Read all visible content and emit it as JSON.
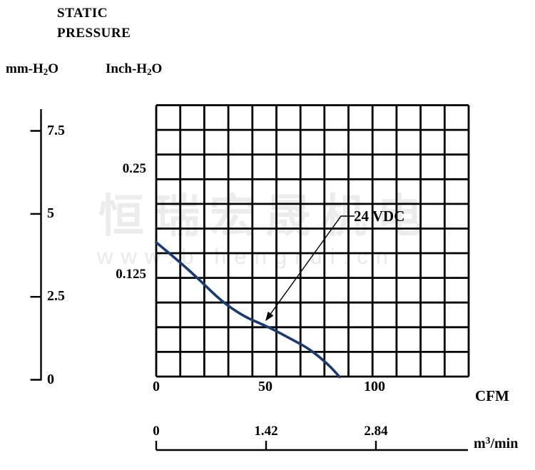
{
  "header": {
    "title_lines": [
      "STATIC",
      "PRESSURE"
    ]
  },
  "axis_units": {
    "mm": {
      "pre": "mm-H",
      "sub": "2",
      "post": "O"
    },
    "inch": {
      "pre": "Inch-H",
      "sub": "2",
      "post": "O"
    },
    "cfm": "CFM",
    "m3min": {
      "pre": "m",
      "sup": "3",
      "post": "/min"
    }
  },
  "watermark": {
    "text": "恒瑞宏晟机电",
    "url": "www.bihengrui.cn"
  },
  "colors": {
    "curve": "#1b3a6e",
    "grid": "#000000",
    "axis": "#000000",
    "watermark_text": "#ececec",
    "watermark_url": "#e9e9e9"
  },
  "chart_data": {
    "type": "line",
    "title": "STATIC PRESSURE",
    "x_axis": {
      "label": "CFM",
      "tick_labels": [
        "0",
        "50",
        "100"
      ],
      "ticks_cfm": [
        0,
        50,
        100
      ],
      "range_cfm": [
        0,
        144
      ]
    },
    "x_axis_secondary": {
      "label": "m3/min",
      "tick_labels": [
        "0",
        "1.42",
        "2.84"
      ],
      "ticks": [
        0,
        1.42,
        2.84
      ]
    },
    "y_axis_primary": {
      "label": "mm-H2O",
      "tick_labels": [
        "7.5",
        "5",
        "2.5",
        "0"
      ],
      "ticks_mm": [
        7.5,
        5,
        2.5,
        0
      ],
      "range_mm": [
        0,
        8.2
      ]
    },
    "y_axis_secondary": {
      "label": "Inch-H2O",
      "tick_labels": [
        "0.25",
        "0.125"
      ],
      "ticks_inch": [
        0.25,
        0.125
      ]
    },
    "grid": {
      "visible": true,
      "cols": 13,
      "rows": 11
    },
    "series": [
      {
        "name": "24 VDC",
        "points_cfm_mm": [
          [
            0,
            4.1
          ],
          [
            10,
            3.55
          ],
          [
            20,
            2.95
          ],
          [
            30,
            2.3
          ],
          [
            40,
            1.85
          ],
          [
            48,
            1.62
          ],
          [
            55,
            1.4
          ],
          [
            62,
            1.15
          ],
          [
            69,
            0.9
          ],
          [
            75,
            0.6
          ],
          [
            80,
            0.3
          ],
          [
            84,
            0
          ]
        ],
        "max_flow_cfm": 84,
        "max_static_pressure_mm": 4.1
      }
    ],
    "annotation": {
      "label": "24 VDC",
      "arrow_to_cfm_mm": [
        50,
        1.7
      ]
    },
    "legend_position": "annotated-on-curve"
  }
}
